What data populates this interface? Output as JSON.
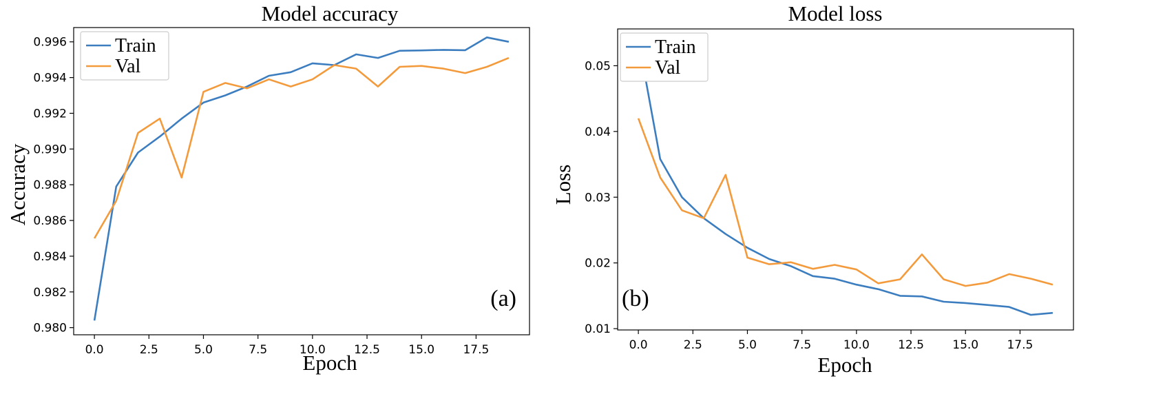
{
  "colors": {
    "train": "#3b7dbf",
    "val": "#f39b3c"
  },
  "chart_data": [
    {
      "type": "line",
      "title": "Model accuracy",
      "xlabel": "Epoch",
      "ylabel": "Accuracy",
      "panel_tag": "(a)",
      "legend_position": "upper-left",
      "xlim": [
        -0.95,
        19.95
      ],
      "ylim": [
        0.9796,
        0.9968
      ],
      "xticks": [
        0.0,
        2.5,
        5.0,
        7.5,
        10.0,
        12.5,
        15.0,
        17.5
      ],
      "xtick_labels": [
        "0.0",
        "2.5",
        "5.0",
        "7.5",
        "10.0",
        "12.5",
        "15.0",
        "17.5"
      ],
      "yticks": [
        0.98,
        0.982,
        0.984,
        0.986,
        0.988,
        0.99,
        0.992,
        0.994,
        0.996
      ],
      "ytick_labels": [
        "0.980",
        "0.982",
        "0.984",
        "0.986",
        "0.988",
        "0.990",
        "0.992",
        "0.994",
        "0.996"
      ],
      "x": [
        0,
        1,
        2,
        3,
        4,
        5,
        6,
        7,
        8,
        9,
        10,
        11,
        12,
        13,
        14,
        15,
        16,
        17,
        18,
        19
      ],
      "series": [
        {
          "name": "Train",
          "color_key": "train",
          "values": [
            0.9804,
            0.9879,
            0.9898,
            0.9907,
            0.9917,
            0.9926,
            0.993,
            0.9935,
            0.9941,
            0.9943,
            0.9948,
            0.9947,
            0.9953,
            0.9951,
            0.9955,
            0.99552,
            0.99555,
            0.99553,
            0.99625,
            0.996
          ]
        },
        {
          "name": "Val",
          "color_key": "val",
          "values": [
            0.985,
            0.9871,
            0.9909,
            0.9917,
            0.9884,
            0.9932,
            0.9937,
            0.9934,
            0.9939,
            0.9935,
            0.9939,
            0.9947,
            0.9945,
            0.9935,
            0.9946,
            0.99465,
            0.9945,
            0.99425,
            0.9946,
            0.9951
          ]
        }
      ]
    },
    {
      "type": "line",
      "title": "Model loss",
      "xlabel": "Epoch",
      "ylabel": "Loss",
      "panel_tag": "(b)",
      "legend_position": "upper-left",
      "xlim": [
        -0.95,
        19.95
      ],
      "ylim": [
        0.0098,
        0.0556
      ],
      "xticks": [
        0.0,
        2.5,
        5.0,
        7.5,
        10.0,
        12.5,
        15.0,
        17.5
      ],
      "xtick_labels": [
        "0.0",
        "2.5",
        "5.0",
        "7.5",
        "10.0",
        "12.5",
        "15.0",
        "17.5"
      ],
      "yticks": [
        0.01,
        0.02,
        0.03,
        0.04,
        0.05
      ],
      "ytick_labels": [
        "0.01",
        "0.02",
        "0.03",
        "0.04",
        "0.05"
      ],
      "x": [
        0,
        1,
        2,
        3,
        4,
        5,
        6,
        7,
        8,
        9,
        10,
        11,
        12,
        13,
        14,
        15,
        16,
        17,
        18,
        19
      ],
      "series": [
        {
          "name": "Train",
          "color_key": "train",
          "values": [
            0.054,
            0.0358,
            0.03,
            0.0268,
            0.0244,
            0.0223,
            0.0206,
            0.0195,
            0.018,
            0.0176,
            0.0167,
            0.016,
            0.015,
            0.0149,
            0.0141,
            0.0139,
            0.0136,
            0.0133,
            0.0121,
            0.0124
          ]
        },
        {
          "name": "Val",
          "color_key": "val",
          "values": [
            0.042,
            0.033,
            0.028,
            0.0268,
            0.0334,
            0.0208,
            0.0198,
            0.0201,
            0.0191,
            0.0197,
            0.019,
            0.0169,
            0.0175,
            0.0213,
            0.0175,
            0.0165,
            0.017,
            0.0183,
            0.0176,
            0.0167
          ]
        }
      ]
    }
  ]
}
